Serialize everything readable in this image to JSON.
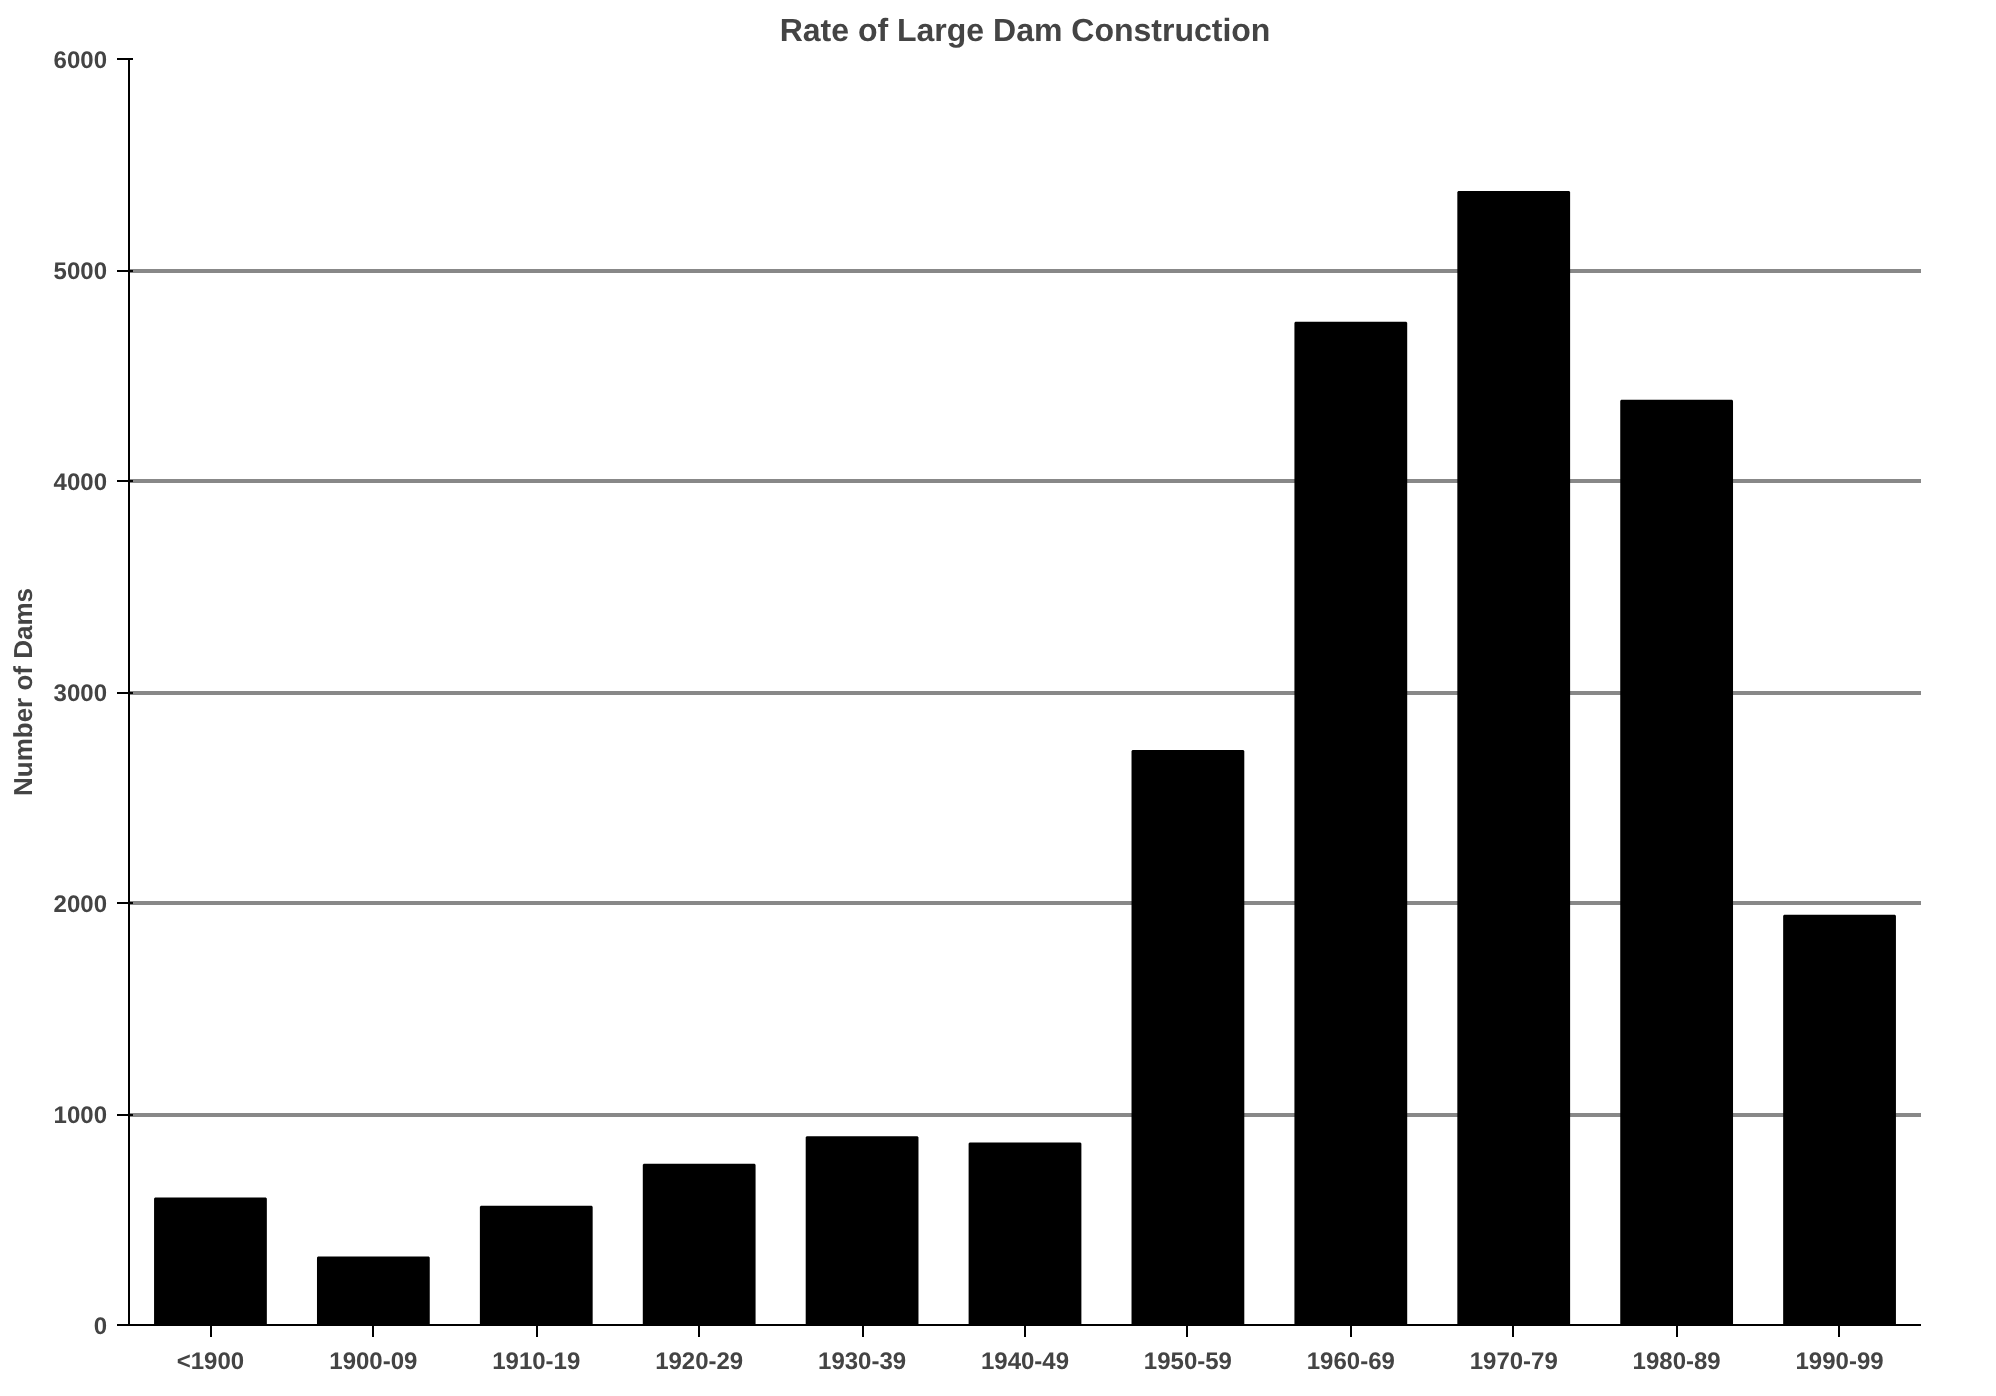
{
  "chart_data": {
    "type": "bar",
    "title": "Rate of Large Dam Construction",
    "ylabel": "Number of Dams",
    "categories": [
      "<1900",
      "1900-09",
      "1910-19",
      "1920-29",
      "1930-39",
      "1940-49",
      "1950-59",
      "1960-69",
      "1970-79",
      "1980-89",
      "1990-99"
    ],
    "values": [
      600,
      320,
      560,
      760,
      890,
      860,
      2720,
      4750,
      5370,
      4380,
      1940
    ],
    "color": "#000000",
    "ylim": [
      0,
      6000
    ],
    "yticks": [
      0,
      1000,
      2000,
      3000,
      4000,
      5000,
      6000
    ],
    "grid": "y"
  }
}
